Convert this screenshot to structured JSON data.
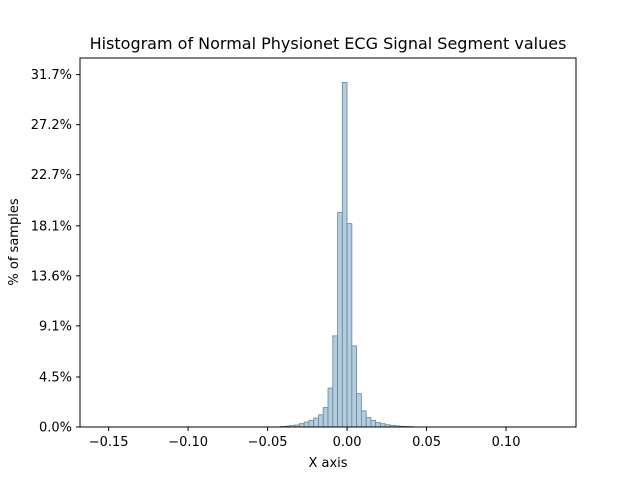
{
  "chart_data": {
    "type": "bar",
    "title": "Histogram of Normal Physionet ECG Signal Segment values",
    "xlabel": "X axis",
    "ylabel": "% of samples",
    "xlim": [
      -0.168,
      0.144
    ],
    "ylim": [
      0,
      33.2
    ],
    "x_ticks": [
      -0.15,
      -0.1,
      -0.05,
      0.0,
      0.05,
      0.1
    ],
    "x_tick_labels": [
      "−0.15",
      "−0.10",
      "−0.05",
      "0.00",
      "0.05",
      "0.10"
    ],
    "y_ticks": [
      0,
      4.5,
      9.1,
      13.6,
      18.1,
      22.7,
      27.2,
      31.7
    ],
    "y_tick_labels": [
      "0.0%",
      "4.5%",
      "9.1%",
      "13.6%",
      "18.1%",
      "22.7%",
      "27.2%",
      "31.7%"
    ],
    "bin_width": 0.003,
    "bins": [
      {
        "x0": -0.042,
        "value": 0.05
      },
      {
        "x0": -0.039,
        "value": 0.08
      },
      {
        "x0": -0.036,
        "value": 0.12
      },
      {
        "x0": -0.033,
        "value": 0.18
      },
      {
        "x0": -0.03,
        "value": 0.3
      },
      {
        "x0": -0.027,
        "value": 0.45
      },
      {
        "x0": -0.024,
        "value": 0.6
      },
      {
        "x0": -0.021,
        "value": 0.8
      },
      {
        "x0": -0.018,
        "value": 1.1
      },
      {
        "x0": -0.015,
        "value": 1.75
      },
      {
        "x0": -0.012,
        "value": 3.5
      },
      {
        "x0": -0.009,
        "value": 8.2
      },
      {
        "x0": -0.006,
        "value": 19.3
      },
      {
        "x0": -0.003,
        "value": 31.0
      },
      {
        "x0": 0.0,
        "value": 18.3
      },
      {
        "x0": 0.003,
        "value": 7.3
      },
      {
        "x0": 0.006,
        "value": 3.0
      },
      {
        "x0": 0.009,
        "value": 1.45
      },
      {
        "x0": 0.012,
        "value": 0.85
      },
      {
        "x0": 0.015,
        "value": 0.6
      },
      {
        "x0": 0.018,
        "value": 0.4
      },
      {
        "x0": 0.021,
        "value": 0.3
      },
      {
        "x0": 0.024,
        "value": 0.2
      },
      {
        "x0": 0.027,
        "value": 0.15
      },
      {
        "x0": 0.03,
        "value": 0.1
      },
      {
        "x0": 0.033,
        "value": 0.07
      },
      {
        "x0": 0.036,
        "value": 0.05
      },
      {
        "x0": 0.039,
        "value": 0.04
      }
    ],
    "bar_color": "#b3cde0",
    "bar_edge_color": "#6b8494",
    "grid": false,
    "legend": "none"
  }
}
